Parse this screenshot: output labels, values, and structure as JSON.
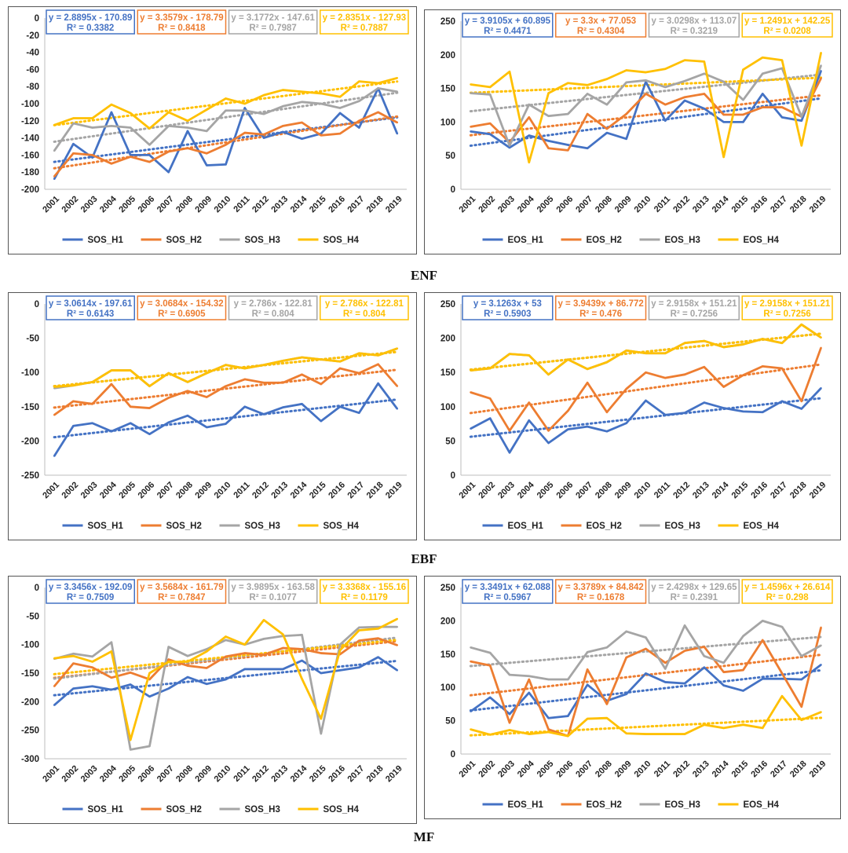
{
  "group_labels": [
    "ENF",
    "EBF",
    "MF"
  ],
  "colors": {
    "H1": "#4472C4",
    "H2": "#ED7D31",
    "H3": "#A5A5A5",
    "H4": "#FFC000"
  },
  "chart_data": [
    {
      "type": "line",
      "id": "enf-sos",
      "group": "ENF",
      "categories": [
        "2001",
        "2002",
        "2003",
        "2004",
        "2005",
        "2006",
        "2007",
        "2008",
        "2009",
        "2010",
        "2011",
        "2012",
        "2013",
        "2014",
        "2015",
        "2016",
        "2017",
        "2018",
        "2019"
      ],
      "ylim": [
        -200,
        0
      ],
      "yticks": [
        0,
        -20,
        -40,
        -60,
        -80,
        -100,
        -120,
        -140,
        -160,
        -180,
        -200
      ],
      "legend_position": "bottom",
      "series": [
        {
          "name": "SOS_H1",
          "key": "H1",
          "equation": "y = 2.8895x - 170.89",
          "r2": "R² = 0.3382",
          "slope": 2.8895,
          "intercept": -170.89,
          "values": [
            -188,
            -147,
            -163,
            -110,
            -160,
            -160,
            -180,
            -132,
            -172,
            -171,
            -105,
            -140,
            -133,
            -141,
            -135,
            -111,
            -128,
            -82,
            -135
          ]
        },
        {
          "name": "SOS_H2",
          "key": "H2",
          "equation": "y = 3.3579x - 178.79",
          "r2": "R² = 0.8418",
          "slope": 3.3579,
          "intercept": -178.79,
          "values": [
            -185,
            -158,
            -160,
            -170,
            -162,
            -168,
            -156,
            -152,
            -158,
            -148,
            -134,
            -136,
            -126,
            -122,
            -137,
            -135,
            -120,
            -110,
            -122
          ]
        },
        {
          "name": "SOS_H3",
          "key": "H3",
          "equation": "y = 3.1772x - 147.61",
          "r2": "R² = 0.7987",
          "slope": 3.1772,
          "intercept": -147.61,
          "values": [
            -155,
            -123,
            -128,
            -126,
            -128,
            -148,
            -126,
            -128,
            -132,
            -108,
            -108,
            -112,
            -103,
            -98,
            -100,
            -105,
            -97,
            -82,
            -86
          ]
        },
        {
          "name": "SOS_H4",
          "key": "H4",
          "equation": "y = 2.8351x - 127.93",
          "r2": "R² = 0.7887",
          "slope": 2.8351,
          "intercept": -127.93,
          "values": [
            -125,
            -117,
            -117,
            -101,
            -111,
            -129,
            -110,
            -120,
            -107,
            -94,
            -100,
            -90,
            -84,
            -86,
            -88,
            -92,
            -74,
            -76,
            -70
          ]
        }
      ]
    },
    {
      "type": "line",
      "id": "enf-eos",
      "group": "ENF",
      "categories": [
        "2001",
        "2002",
        "2003",
        "2004",
        "2005",
        "2006",
        "2007",
        "2008",
        "2009",
        "2010",
        "2011",
        "2012",
        "2013",
        "2014",
        "2015",
        "2016",
        "2017",
        "2018",
        "2019"
      ],
      "ylim": [
        0,
        250
      ],
      "yticks": [
        0,
        50,
        100,
        150,
        200,
        250
      ],
      "legend_position": "bottom",
      "series": [
        {
          "name": "EOS_H1",
          "key": "H1",
          "equation": "y = 3.9105x + 60.895",
          "r2": "R² = 0.4471",
          "slope": 3.9105,
          "intercept": 60.895,
          "values": [
            86,
            82,
            62,
            80,
            72,
            66,
            61,
            84,
            75,
            160,
            102,
            132,
            120,
            100,
            100,
            142,
            107,
            102,
            176
          ]
        },
        {
          "name": "EOS_H2",
          "key": "H2",
          "equation": "y = 3.3x + 77.053",
          "r2": "R² = 0.4304",
          "slope": 3.3,
          "intercept": 77.053,
          "values": [
            93,
            98,
            70,
            107,
            61,
            58,
            112,
            90,
            112,
            142,
            126,
            137,
            142,
            111,
            111,
            122,
            122,
            108,
            165
          ]
        },
        {
          "name": "EOS_H3",
          "key": "H3",
          "equation": "y = 3.0298x + 113.07",
          "r2": "R² = 0.3219",
          "slope": 3.0298,
          "intercept": 113.07,
          "values": [
            143,
            141,
            65,
            126,
            109,
            112,
            142,
            126,
            159,
            162,
            152,
            161,
            172,
            160,
            133,
            172,
            180,
            108,
            184
          ]
        },
        {
          "name": "EOS_H4",
          "key": "H4",
          "equation": "y = 1.2491x + 142.25",
          "r2": "R² = 0.0208",
          "slope": 1.2491,
          "intercept": 142.25,
          "values": [
            156,
            152,
            175,
            40,
            143,
            158,
            155,
            164,
            177,
            174,
            179,
            192,
            190,
            48,
            178,
            196,
            192,
            65,
            203
          ]
        }
      ]
    },
    {
      "type": "line",
      "id": "ebf-sos",
      "group": "EBF",
      "categories": [
        "2001",
        "2002",
        "2003",
        "2004",
        "2005",
        "2006",
        "2007",
        "2008",
        "2009",
        "2010",
        "2011",
        "2012",
        "2013",
        "2014",
        "2015",
        "2016",
        "2017",
        "2018",
        "2019"
      ],
      "ylim": [
        -250,
        0
      ],
      "yticks": [
        0,
        -50,
        -100,
        -150,
        -200,
        -250
      ],
      "legend_position": "bottom",
      "series": [
        {
          "name": "SOS_H1",
          "key": "H1",
          "equation": "y = 3.0614x - 197.61",
          "r2": "R² = 0.6143",
          "slope": 3.0614,
          "intercept": -197.61,
          "values": [
            -222,
            -178,
            -174,
            -186,
            -174,
            -190,
            -173,
            -163,
            -180,
            -175,
            -150,
            -161,
            -151,
            -146,
            -171,
            -150,
            -159,
            -116,
            -153
          ]
        },
        {
          "name": "SOS_H2",
          "key": "H2",
          "equation": "y = 3.0684x - 154.32",
          "r2": "R² = 0.6905",
          "slope": 3.0684,
          "intercept": -154.32,
          "values": [
            -162,
            -142,
            -146,
            -117,
            -150,
            -152,
            -137,
            -127,
            -136,
            -120,
            -110,
            -115,
            -115,
            -103,
            -117,
            -94,
            -101,
            -88,
            -120
          ]
        },
        {
          "name": "SOS_H3",
          "key": "H3",
          "equation": "y = 2.786x - 122.81",
          "r2": "R² = 0.804",
          "slope": 2.786,
          "intercept": -122.81,
          "values": [
            -123,
            -119,
            -114,
            -97,
            -97,
            -120,
            -101,
            -114,
            -101,
            -89,
            -94,
            -89,
            -83,
            -78,
            -81,
            -84,
            -72,
            -75,
            -65
          ]
        },
        {
          "name": "SOS_H4",
          "key": "H4",
          "equation": "y = 2.786x - 122.81",
          "r2": "R² = 0.804",
          "slope": 2.786,
          "intercept": -122.81,
          "values": [
            -121,
            -119,
            -114,
            -97,
            -97,
            -120,
            -101,
            -114,
            -101,
            -89,
            -94,
            -89,
            -83,
            -78,
            -81,
            -84,
            -72,
            -75,
            -65
          ]
        }
      ]
    },
    {
      "type": "line",
      "id": "ebf-eos",
      "group": "EBF",
      "categories": [
        "2001",
        "2002",
        "2003",
        "2004",
        "2005",
        "2006",
        "2007",
        "2008",
        "2009",
        "2010",
        "2011",
        "2012",
        "2013",
        "2014",
        "2015",
        "2016",
        "2017",
        "2018",
        "2019"
      ],
      "ylim": [
        0,
        250
      ],
      "yticks": [
        0,
        50,
        100,
        150,
        200,
        250
      ],
      "legend_position": "bottom",
      "series": [
        {
          "name": "EOS_H1",
          "key": "H1",
          "equation": "y = 3.1263x + 53",
          "r2": "R² = 0.5903",
          "slope": 3.1263,
          "intercept": 53,
          "values": [
            68,
            83,
            33,
            80,
            47,
            67,
            71,
            64,
            76,
            109,
            88,
            91,
            106,
            98,
            93,
            92,
            108,
            97,
            127
          ]
        },
        {
          "name": "EOS_H2",
          "key": "H2",
          "equation": "y = 3.9439x + 86.772",
          "r2": "R² = 0.476",
          "slope": 3.9439,
          "intercept": 86.772,
          "values": [
            121,
            112,
            65,
            106,
            65,
            94,
            135,
            92,
            126,
            150,
            142,
            147,
            158,
            129,
            146,
            159,
            156,
            108,
            186
          ]
        },
        {
          "name": "EOS_H3",
          "key": "H3",
          "equation": "y = 2.9158x + 151.21",
          "r2": "R² = 0.7256",
          "slope": 2.9158,
          "intercept": 151.21,
          "values": [
            153,
            156,
            177,
            175,
            147,
            169,
            155,
            165,
            182,
            178,
            178,
            193,
            196,
            187,
            191,
            199,
            193,
            220,
            201
          ]
        },
        {
          "name": "EOS_H4",
          "key": "H4",
          "equation": "y = 2.9158x + 151.21",
          "r2": "R² = 0.7256",
          "slope": 2.9158,
          "intercept": 151.21,
          "values": [
            153,
            156,
            177,
            175,
            147,
            169,
            155,
            165,
            182,
            178,
            178,
            193,
            196,
            187,
            191,
            199,
            193,
            220,
            201
          ]
        }
      ]
    },
    {
      "type": "line",
      "id": "mf-sos",
      "group": "MF",
      "categories": [
        "2001",
        "2002",
        "2003",
        "2004",
        "2005",
        "2006",
        "2007",
        "2008",
        "2009",
        "2010",
        "2011",
        "2012",
        "2013",
        "2014",
        "2015",
        "2016",
        "2017",
        "2018",
        "2019"
      ],
      "ylim": [
        -300,
        0
      ],
      "yticks": [
        0,
        -50,
        -100,
        -150,
        -200,
        -250,
        -300
      ],
      "legend_position": "bottom",
      "series": [
        {
          "name": "SOS_H1",
          "key": "H1",
          "equation": "y = 3.3456x - 192.09",
          "r2": "R² = 0.7509",
          "slope": 3.3456,
          "intercept": -192.09,
          "values": [
            -206,
            -177,
            -173,
            -179,
            -170,
            -191,
            -177,
            -157,
            -169,
            -161,
            -143,
            -143,
            -143,
            -128,
            -150,
            -145,
            -140,
            -122,
            -145
          ]
        },
        {
          "name": "SOS_H2",
          "key": "H2",
          "equation": "y = 3.5684x - 161.79",
          "r2": "R² = 0.7847",
          "slope": 3.5684,
          "intercept": -161.79,
          "values": [
            -173,
            -133,
            -140,
            -158,
            -149,
            -161,
            -126,
            -137,
            -141,
            -121,
            -115,
            -118,
            -106,
            -108,
            -115,
            -117,
            -93,
            -89,
            -101
          ]
        },
        {
          "name": "SOS_H3",
          "key": "H3",
          "equation": "y = 3.9895x - 163.58",
          "r2": "R² = 0.1077",
          "slope": 3.9895,
          "intercept": -163.58,
          "values": [
            -125,
            -116,
            -121,
            -96,
            -284,
            -278,
            -104,
            -120,
            -108,
            -92,
            -100,
            -90,
            -85,
            -83,
            -256,
            -100,
            -70,
            -69,
            -69
          ]
        },
        {
          "name": "SOS_H4",
          "key": "H4",
          "equation": "y = 3.3368x - 155.16",
          "r2": "R² = 0.1179",
          "slope": 3.3368,
          "intercept": -155.16,
          "values": [
            -124,
            -120,
            -130,
            -112,
            -267,
            -150,
            -130,
            -130,
            -112,
            -86,
            -100,
            -57,
            -82,
            -160,
            -230,
            -110,
            -75,
            -72,
            -55
          ]
        }
      ]
    },
    {
      "type": "line",
      "id": "mf-eos",
      "group": "MF",
      "categories": [
        "2001",
        "2002",
        "2003",
        "2004",
        "2005",
        "2006",
        "2007",
        "2008",
        "2009",
        "2010",
        "2011",
        "2012",
        "2013",
        "2014",
        "2015",
        "2016",
        "2017",
        "2018",
        "2019"
      ],
      "ylim": [
        0,
        250
      ],
      "yticks": [
        0,
        50,
        100,
        150,
        200,
        250
      ],
      "legend_position": "bottom",
      "series": [
        {
          "name": "EOS_H1",
          "key": "H1",
          "equation": "y = 3.3491x + 62.088",
          "r2": "R² = 0.5967",
          "slope": 3.3491,
          "intercept": 62.088,
          "values": [
            64,
            85,
            60,
            92,
            54,
            57,
            104,
            80,
            90,
            121,
            108,
            106,
            130,
            103,
            95,
            113,
            113,
            112,
            134
          ]
        },
        {
          "name": "EOS_H2",
          "key": "H2",
          "equation": "y = 3.3789x + 84.842",
          "r2": "R² = 0.1678",
          "slope": 3.3789,
          "intercept": 84.842,
          "values": [
            139,
            133,
            47,
            112,
            37,
            27,
            127,
            75,
            145,
            158,
            137,
            155,
            161,
            123,
            126,
            171,
            121,
            71,
            190
          ]
        },
        {
          "name": "EOS_H3",
          "key": "H3",
          "equation": "y = 2.4298x + 129.65",
          "r2": "R² = 0.2391",
          "slope": 2.4298,
          "intercept": 129.65,
          "values": [
            160,
            152,
            119,
            117,
            112,
            112,
            153,
            160,
            184,
            175,
            128,
            193,
            147,
            137,
            177,
            200,
            191,
            147,
            163
          ]
        },
        {
          "name": "EOS_H4",
          "key": "H4",
          "equation": "y = 1.4596x + 26.614",
          "r2": "R² = 0.298",
          "slope": 1.4596,
          "intercept": 26.614,
          "values": [
            37,
            29,
            36,
            30,
            33,
            27,
            53,
            54,
            31,
            30,
            30,
            30,
            44,
            39,
            44,
            39,
            87,
            51,
            63
          ]
        }
      ]
    }
  ]
}
